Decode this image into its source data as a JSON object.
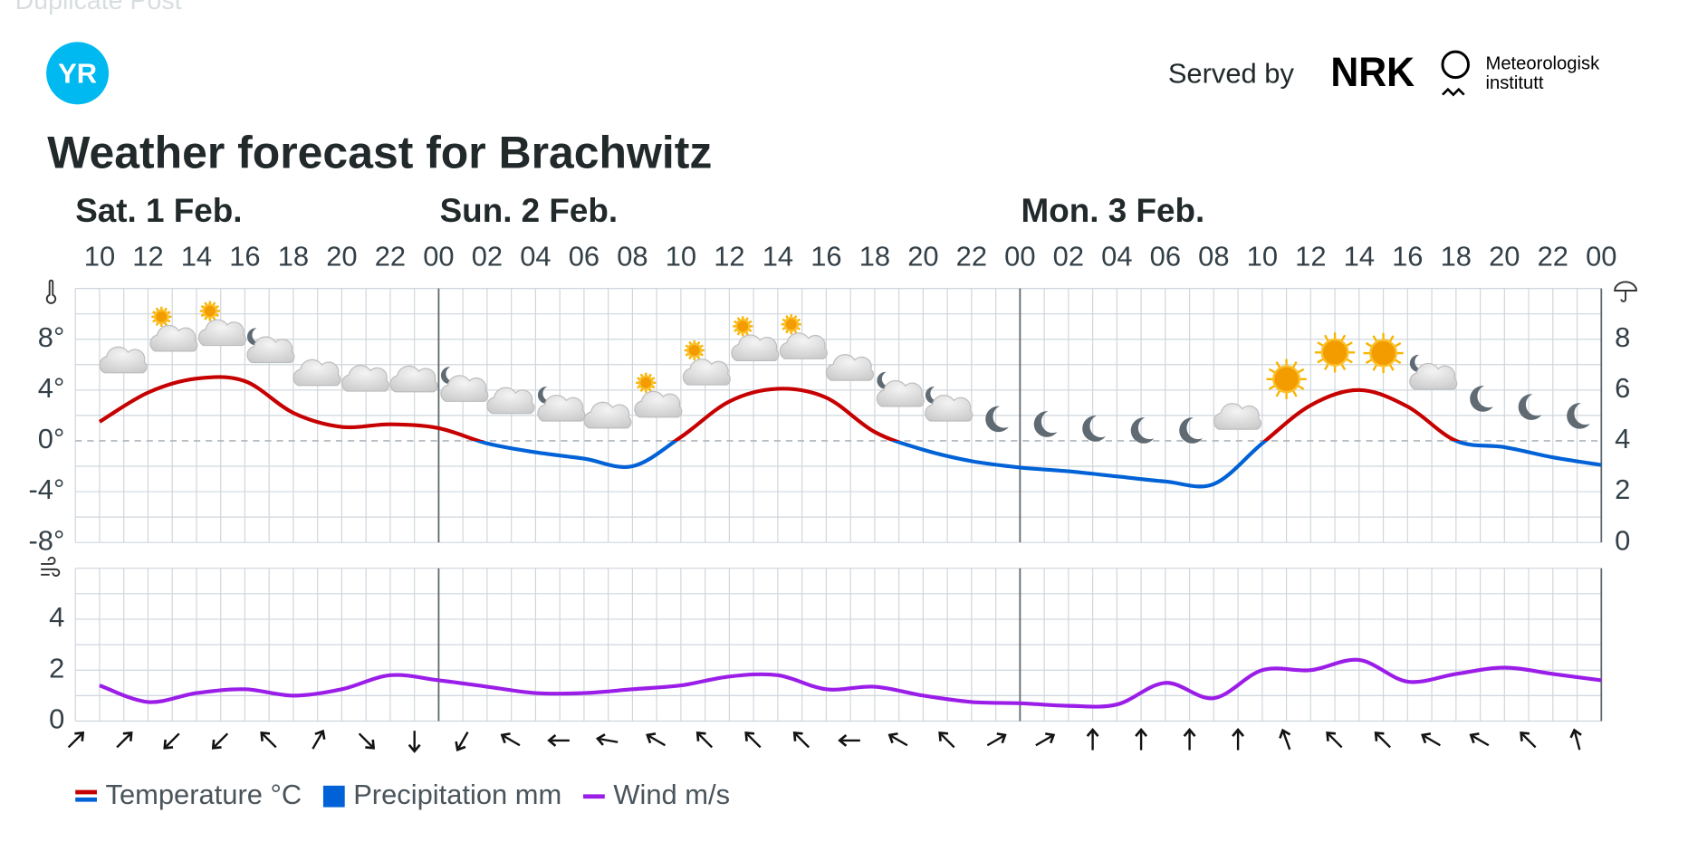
{
  "header": {
    "faded_text": "Duplicate Post",
    "logo": "YR",
    "served_by": "Served by",
    "nrk": "NRK",
    "met_line1": "Meteorologisk",
    "met_line2": "institutt"
  },
  "chart_data": [
    {
      "type": "line",
      "title": "Weather forecast for Brachwitz",
      "days": [
        "Sat. 1 Feb.",
        "Sun. 2 Feb.",
        "Mon. 3 Feb."
      ],
      "categories": [
        "10",
        "12",
        "14",
        "16",
        "18",
        "20",
        "22",
        "00",
        "02",
        "04",
        "06",
        "08",
        "10",
        "12",
        "14",
        "16",
        "18",
        "20",
        "22",
        "00",
        "02",
        "04",
        "06",
        "08",
        "10",
        "12",
        "14",
        "16",
        "18",
        "20",
        "22",
        "00"
      ],
      "series": [
        {
          "name": "Temperature °C",
          "color": "#c60000",
          "negative_color": "#0062d6",
          "values": [
            1.5,
            3.8,
            4.9,
            4.7,
            2.2,
            1.1,
            1.3,
            1.0,
            -0.2,
            -0.9,
            -1.4,
            -2.0,
            0.3,
            3.1,
            4.1,
            3.4,
            0.7,
            -0.7,
            -1.6,
            -2.1,
            -2.4,
            -2.8,
            -3.2,
            -3.4,
            -0.2,
            2.8,
            4.0,
            2.7,
            0,
            -0.5,
            -1.3,
            -1.9
          ]
        },
        {
          "name": "Precipitation mm",
          "color": "#0062d6",
          "axis": "y2",
          "values": [
            0,
            0,
            0,
            0,
            0,
            0,
            0,
            0,
            0,
            0,
            0,
            0,
            0,
            0,
            0,
            0,
            0,
            0,
            0,
            0,
            0,
            0,
            0,
            0,
            0,
            0,
            0,
            0,
            0,
            0,
            0,
            0
          ]
        }
      ],
      "ylim": [
        -8,
        12
      ],
      "yticks": [
        {
          "value": -8,
          "label": "-8°"
        },
        {
          "value": -4,
          "label": "-4°"
        },
        {
          "value": 0,
          "label": "0°"
        },
        {
          "value": 4,
          "label": "4°"
        },
        {
          "value": 8,
          "label": "8°"
        }
      ],
      "y2lim": [
        0,
        10
      ],
      "y2ticks": [
        0,
        2,
        4,
        6,
        8
      ],
      "grid": true
    },
    {
      "type": "line",
      "series": [
        {
          "name": "Wind m/s",
          "color": "#9b1de8",
          "values": [
            1.4,
            0.75,
            1.1,
            1.25,
            1.0,
            1.25,
            1.8,
            1.6,
            1.35,
            1.1,
            1.1,
            1.25,
            1.4,
            1.75,
            1.8,
            1.25,
            1.35,
            1.0,
            0.75,
            0.7,
            0.6,
            0.65,
            1.5,
            0.9,
            2.0,
            2.0,
            2.4,
            1.55,
            1.85,
            2.1,
            1.85,
            1.6
          ]
        }
      ],
      "wind_direction": [
        45,
        45,
        225,
        225,
        315,
        30,
        135,
        180,
        210,
        300,
        270,
        280,
        300,
        315,
        315,
        315,
        270,
        300,
        315,
        60,
        60,
        0,
        0,
        0,
        0,
        340,
        315,
        315,
        300,
        300,
        315,
        345
      ],
      "ylim": [
        0,
        6
      ],
      "yticks": [
        0,
        2,
        4
      ],
      "grid": true
    }
  ]
}
